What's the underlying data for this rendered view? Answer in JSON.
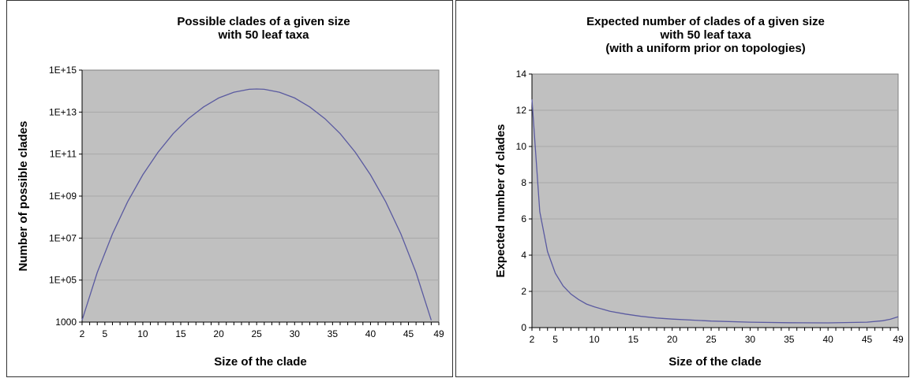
{
  "chart_data": [
    {
      "type": "line",
      "title_lines": [
        "Possible clades of a given size",
        "with 50 leaf taxa"
      ],
      "xlabel": "Size of the clade",
      "ylabel": "Number of possible clades",
      "yscale": "log",
      "xlim": [
        2,
        49
      ],
      "ylim": [
        1000,
        1000000000000000.0
      ],
      "x_ticks": [
        "2",
        "5",
        "10",
        "15",
        "20",
        "25",
        "30",
        "35",
        "40",
        "45",
        "49"
      ],
      "y_ticks": [
        "1000",
        "1E+05",
        "1E+07",
        "1E+09",
        "1E+11",
        "1E+13",
        "1E+15"
      ],
      "grid": "horizontal",
      "line_color": "#5a5aa0",
      "plot_bg": "#c0c0c0",
      "series": [
        {
          "x": [
            2,
            4,
            6,
            8,
            10,
            12,
            14,
            16,
            18,
            20,
            22,
            24,
            25,
            26,
            28,
            30,
            32,
            34,
            36,
            38,
            40,
            42,
            44,
            46,
            48
          ],
          "y": [
            1225,
            230300,
            15890700,
            536878650,
            10270000000.0,
            121700000000.0,
            937300000000.0,
            4869000000000.0,
            17610000000000.0,
            47130000000000.0,
            88150000000000.0,
            121700000000000.0,
            126400000000000.0,
            121700000000000.0,
            88150000000000.0,
            47130000000000.0,
            17610000000000.0,
            4869000000000.0,
            937300000000.0,
            121700000000.0,
            10270000000.0,
            536878650,
            15890700,
            230300,
            1225
          ]
        }
      ]
    },
    {
      "type": "line",
      "title_lines": [
        "Expected number of clades of a given size",
        "with 50 leaf taxa",
        "(with a uniform prior on topologies)"
      ],
      "xlabel": "Size of the clade",
      "ylabel": "Expected number of clades",
      "xlim": [
        2,
        49
      ],
      "ylim": [
        0,
        14
      ],
      "x_ticks": [
        "2",
        "5",
        "10",
        "15",
        "20",
        "25",
        "30",
        "35",
        "40",
        "45",
        "49"
      ],
      "y_ticks": [
        "0",
        "2",
        "4",
        "6",
        "8",
        "10",
        "12",
        "14"
      ],
      "grid": "horizontal",
      "line_color": "#5a5aa0",
      "plot_bg": "#c0c0c0",
      "series": [
        {
          "x": [
            2,
            3,
            4,
            5,
            6,
            7,
            8,
            9,
            10,
            12,
            14,
            16,
            18,
            20,
            25,
            30,
            35,
            40,
            45,
            47,
            48,
            49
          ],
          "y": [
            12.6,
            6.4,
            4.2,
            3.0,
            2.3,
            1.85,
            1.55,
            1.3,
            1.15,
            0.9,
            0.75,
            0.62,
            0.53,
            0.47,
            0.36,
            0.3,
            0.27,
            0.26,
            0.3,
            0.38,
            0.46,
            0.6
          ]
        }
      ]
    }
  ]
}
